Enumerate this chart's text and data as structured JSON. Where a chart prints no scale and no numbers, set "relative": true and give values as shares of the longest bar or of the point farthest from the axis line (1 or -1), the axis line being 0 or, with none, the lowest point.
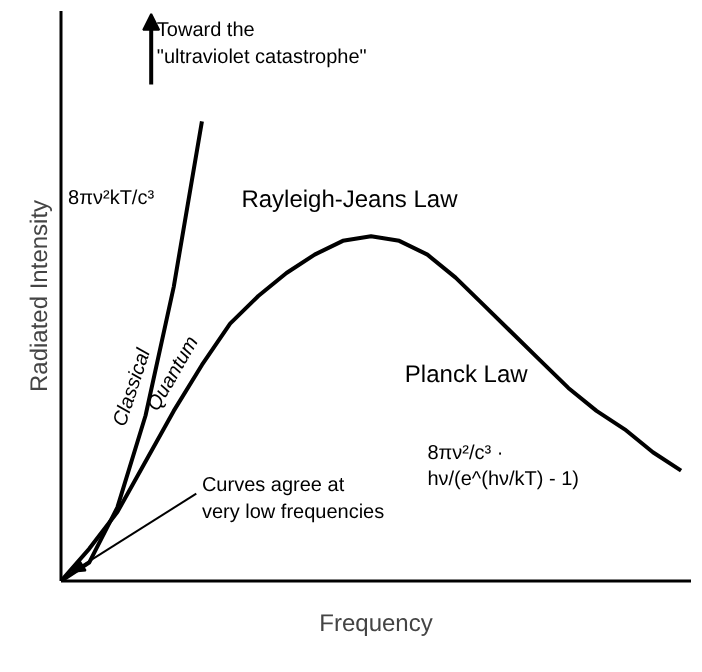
{
  "chart_data": {
    "type": "line",
    "relative": true,
    "xlabel": "Frequency",
    "ylabel": "Radiated Intensity",
    "categories": [
      null,
      null,
      null,
      null,
      null,
      null,
      null,
      null,
      null,
      null,
      null,
      null,
      null,
      null,
      null,
      null,
      null,
      null,
      null,
      null,
      null,
      null,
      null
    ],
    "series": [
      {
        "name": "Classical",
        "color": "#000000",
        "values": [
          0,
          0.04,
          0.16,
          0.36,
          0.64,
          1.0,
          null,
          null,
          null,
          null,
          null,
          null,
          null,
          null,
          null,
          null,
          null,
          null,
          null,
          null,
          null,
          null,
          null
        ]
      },
      {
        "name": "Quantum",
        "color": "#000000",
        "values": [
          0,
          0.07,
          0.15,
          0.26,
          0.37,
          0.47,
          0.56,
          0.62,
          0.67,
          0.71,
          0.74,
          0.75,
          0.74,
          0.71,
          0.66,
          0.6,
          0.54,
          0.48,
          0.42,
          0.37,
          0.33,
          0.28,
          0.24
        ]
      }
    ],
    "annotations": [
      "Toward the\n\"ultraviolet catastrophe\"",
      "8πν²kT/c³",
      "Rayleigh-Jeans Law",
      "Planck Law",
      "8πν²/c³ ·\nhν/(e^(hν/kT) - 1)",
      "Curves agree at\nvery low frequencies"
    ],
    "marker": "none",
    "line_style": "solid"
  }
}
